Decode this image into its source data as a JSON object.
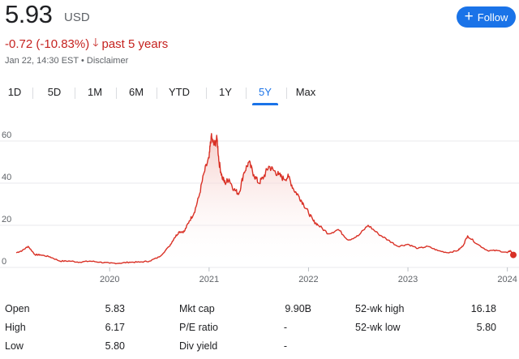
{
  "quote": {
    "price": "5.93",
    "currency": "USD",
    "change": "-0.72 (-10.83%)",
    "direction": "down",
    "period": "past 5 years",
    "timestamp": "Jan 22, 14:30 EST",
    "separator": "•",
    "disclaimer": "Disclaimer"
  },
  "follow_label": "Follow",
  "tabs": [
    {
      "label": "1D",
      "active": false
    },
    {
      "label": "5D",
      "active": false
    },
    {
      "label": "1M",
      "active": false
    },
    {
      "label": "6M",
      "active": false
    },
    {
      "label": "YTD",
      "active": false
    },
    {
      "label": "1Y",
      "active": false
    },
    {
      "label": "5Y",
      "active": true
    },
    {
      "label": "Max",
      "active": false
    }
  ],
  "colors": {
    "line": "#d93025",
    "fill_top": "#f4c7c3",
    "accent": "#1a73e8",
    "negative": "#c5221f",
    "grid": "#e8eaed"
  },
  "chart_data": {
    "type": "area",
    "xlabel": "",
    "ylabel": "",
    "x_ticks": [
      "2020",
      "2021",
      "2022",
      "2023",
      "2024"
    ],
    "y_ticks": [
      0,
      20,
      40,
      60
    ],
    "xlim": [
      2019.06,
      2024.06
    ],
    "ylim": [
      0,
      60
    ],
    "grid": true,
    "x": [
      2019.06,
      2019.12,
      2019.18,
      2019.25,
      2019.3,
      2019.4,
      2019.5,
      2019.6,
      2019.7,
      2019.8,
      2019.9,
      2020.0,
      2020.1,
      2020.2,
      2020.3,
      2020.4,
      2020.5,
      2020.6,
      2020.65,
      2020.7,
      2020.75,
      2020.8,
      2020.85,
      2020.9,
      2020.95,
      2021.0,
      2021.02,
      2021.05,
      2021.08,
      2021.1,
      2021.13,
      2021.16,
      2021.2,
      2021.25,
      2021.3,
      2021.35,
      2021.4,
      2021.45,
      2021.5,
      2021.55,
      2021.6,
      2021.65,
      2021.7,
      2021.75,
      2021.8,
      2021.85,
      2021.9,
      2021.95,
      2022.0,
      2022.05,
      2022.1,
      2022.2,
      2022.3,
      2022.4,
      2022.5,
      2022.6,
      2022.7,
      2022.8,
      2022.9,
      2023.0,
      2023.1,
      2023.2,
      2023.3,
      2023.4,
      2023.5,
      2023.55,
      2023.6,
      2023.7,
      2023.8,
      2023.9,
      2024.0,
      2024.03,
      2024.06
    ],
    "values": [
      7,
      8,
      10,
      6,
      6,
      5,
      3,
      3,
      2.5,
      3,
      2.5,
      2,
      2,
      2.5,
      2.5,
      3,
      5,
      10,
      14,
      17,
      17,
      22,
      26,
      34,
      45,
      52,
      62,
      58,
      61,
      50,
      43,
      40,
      42,
      37,
      35,
      45,
      50,
      44,
      40,
      43,
      48,
      46,
      44,
      42,
      43,
      37,
      34,
      30,
      26,
      22,
      20,
      16,
      18,
      13,
      15,
      20,
      16,
      13,
      10,
      11,
      9,
      10,
      8,
      7,
      8,
      10,
      15,
      11,
      8,
      8,
      7,
      8,
      5.93
    ],
    "last_marker": true
  },
  "stats": {
    "col1": [
      {
        "label": "Open",
        "value": "5.83"
      },
      {
        "label": "High",
        "value": "6.17"
      },
      {
        "label": "Low",
        "value": "5.80"
      }
    ],
    "col2": [
      {
        "label": "Mkt cap",
        "value": "9.90B"
      },
      {
        "label": "P/E ratio",
        "value": "-"
      },
      {
        "label": "Div yield",
        "value": "-"
      }
    ],
    "col3": [
      {
        "label": "52-wk high",
        "value": "16.18"
      },
      {
        "label": "52-wk low",
        "value": "5.80"
      }
    ]
  }
}
